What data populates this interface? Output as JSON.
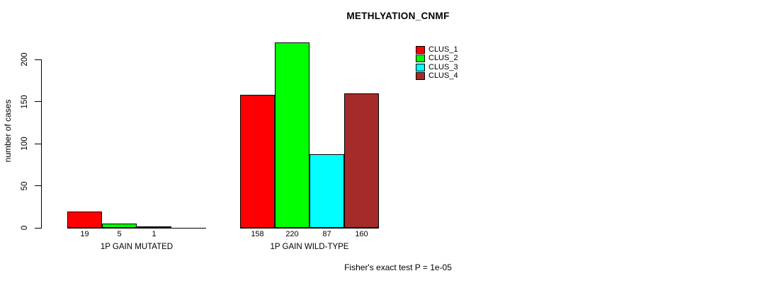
{
  "chart_data": {
    "type": "bar",
    "title": "METHLYATION_CNMF",
    "ylabel": "number of cases",
    "yticks": [
      0,
      50,
      100,
      150,
      200
    ],
    "ylim": [
      0,
      220
    ],
    "grid": false,
    "legend_position": "top-right",
    "categories": [
      "1P GAIN MUTATED",
      "1P GAIN WILD-TYPE"
    ],
    "series": [
      {
        "name": "CLUS_1",
        "color": "#FF0000",
        "values": [
          19,
          158
        ]
      },
      {
        "name": "CLUS_2",
        "color": "#00FF00",
        "values": [
          5,
          220
        ]
      },
      {
        "name": "CLUS_3",
        "color": "#00FFFF",
        "values": [
          1,
          87
        ]
      },
      {
        "name": "CLUS_4",
        "color": "#A52A2A",
        "values": [
          0,
          160
        ]
      }
    ],
    "bar_labels": [
      [
        "19",
        "5",
        "1",
        ""
      ],
      [
        "158",
        "220",
        "87",
        "160"
      ]
    ],
    "footnote": "Fisher's exact test P = 1e-05"
  }
}
